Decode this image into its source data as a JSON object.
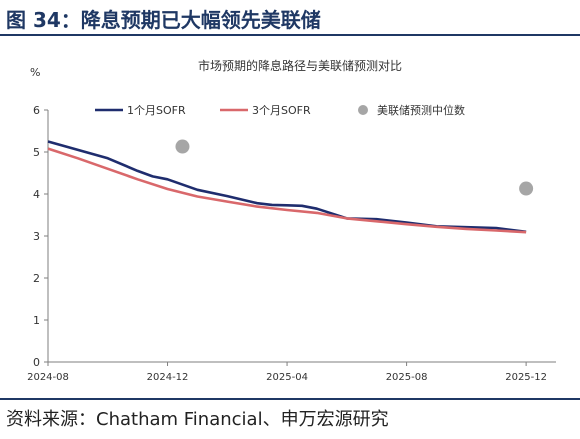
{
  "figure": {
    "title": "图 34：降息预期已大幅领先美联储",
    "source": "资料来源：Chatham Financial、申万宏源研究"
  },
  "chart_data": {
    "type": "line",
    "title": "市场预期的降息路径与美联储预测对比",
    "ylabel": "%",
    "ylim": [
      0,
      6
    ],
    "yticks": [
      "0",
      "1",
      "2",
      "3",
      "4",
      "5",
      "6"
    ],
    "xlim": [
      0,
      17
    ],
    "xticks": [
      {
        "x": 0,
        "label": "2024-08"
      },
      {
        "x": 4,
        "label": "2024-12"
      },
      {
        "x": 8,
        "label": "2025-04"
      },
      {
        "x": 12,
        "label": "2025-08"
      },
      {
        "x": 16,
        "label": "2025-12"
      }
    ],
    "grid": false,
    "legend_position": "top",
    "series": [
      {
        "name": "1个月SOFR",
        "color": "#1f2d6e",
        "style": "line",
        "x": [
          0,
          1,
          2,
          3,
          3.5,
          4,
          5,
          6,
          7,
          7.5,
          8,
          8.5,
          9,
          10,
          11,
          12,
          13,
          14,
          15,
          16
        ],
        "values": [
          5.25,
          5.05,
          4.85,
          4.55,
          4.42,
          4.35,
          4.1,
          3.95,
          3.78,
          3.74,
          3.73,
          3.72,
          3.65,
          3.42,
          3.4,
          3.32,
          3.23,
          3.21,
          3.19,
          3.1
        ]
      },
      {
        "name": "3个月SOFR",
        "color": "#d9686b",
        "style": "line",
        "x": [
          0,
          1,
          2,
          3,
          4,
          5,
          6,
          7,
          8,
          9,
          10,
          11,
          12,
          13,
          14,
          15,
          16
        ],
        "values": [
          5.08,
          4.85,
          4.6,
          4.35,
          4.12,
          3.94,
          3.82,
          3.7,
          3.62,
          3.55,
          3.42,
          3.35,
          3.28,
          3.22,
          3.17,
          3.13,
          3.09
        ]
      },
      {
        "name": "美联储预测中位数",
        "color": "#a6a6a6",
        "style": "marker",
        "x": [
          4.5,
          16
        ],
        "values": [
          5.13,
          4.13
        ]
      }
    ]
  }
}
